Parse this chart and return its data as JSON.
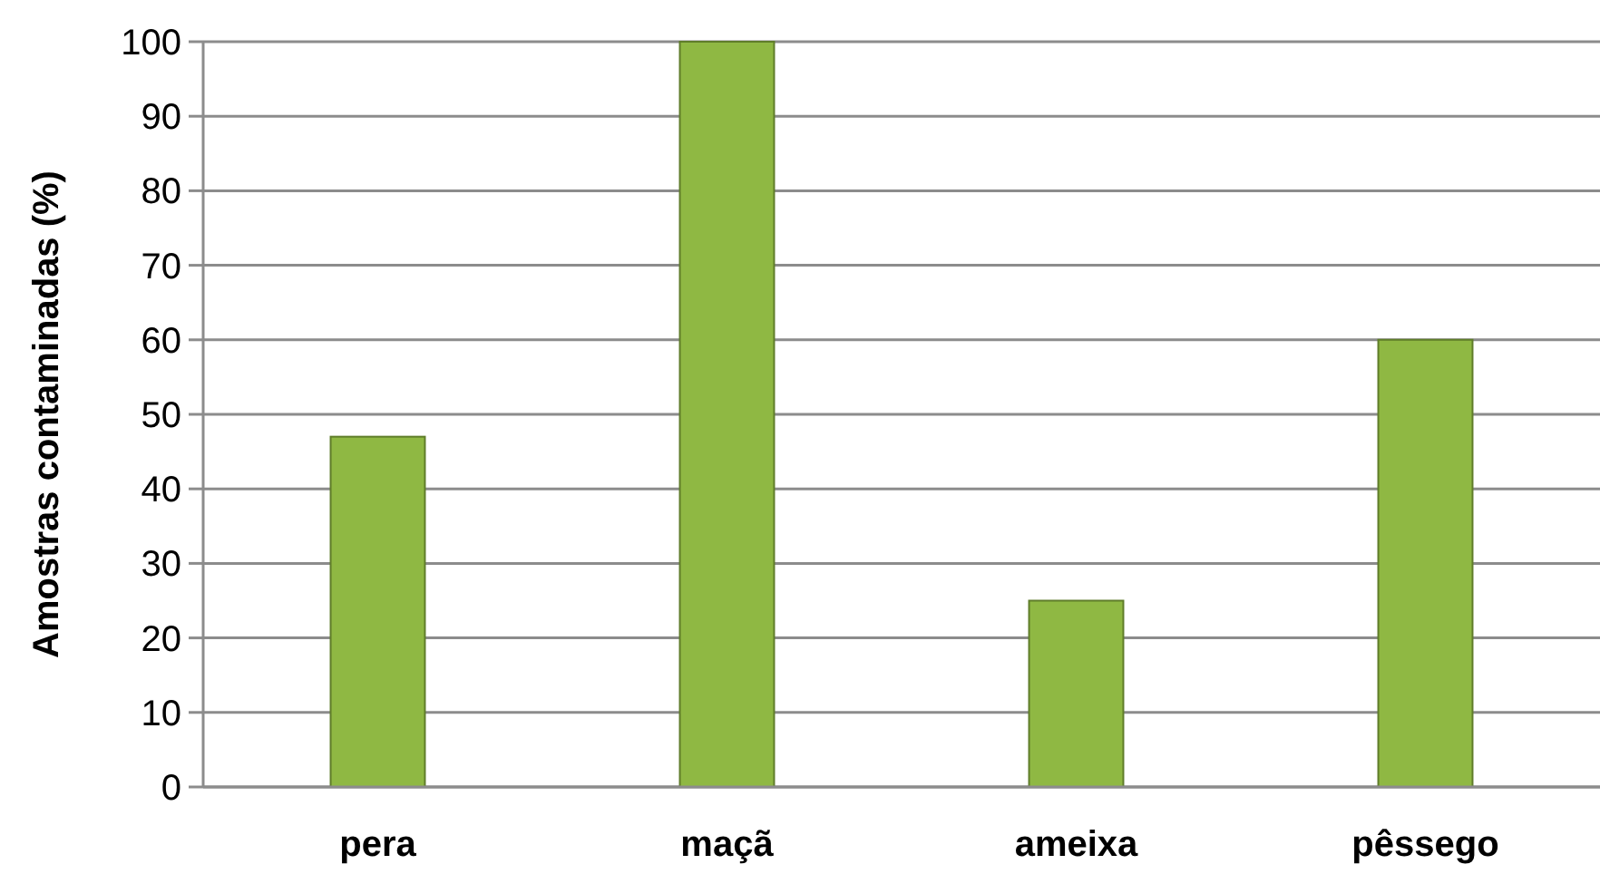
{
  "chart_data": {
    "type": "bar",
    "ylabel": "Amostras contaminadas (%)",
    "categories": [
      "pera",
      "maçã",
      "ameixa",
      "pêssego"
    ],
    "values": [
      47,
      100,
      25,
      60
    ],
    "color": "#8fb843",
    "ylim": [
      0,
      100
    ],
    "yticks": [
      0,
      10,
      20,
      30,
      40,
      50,
      60,
      70,
      80,
      90,
      100
    ],
    "grid": "y"
  }
}
